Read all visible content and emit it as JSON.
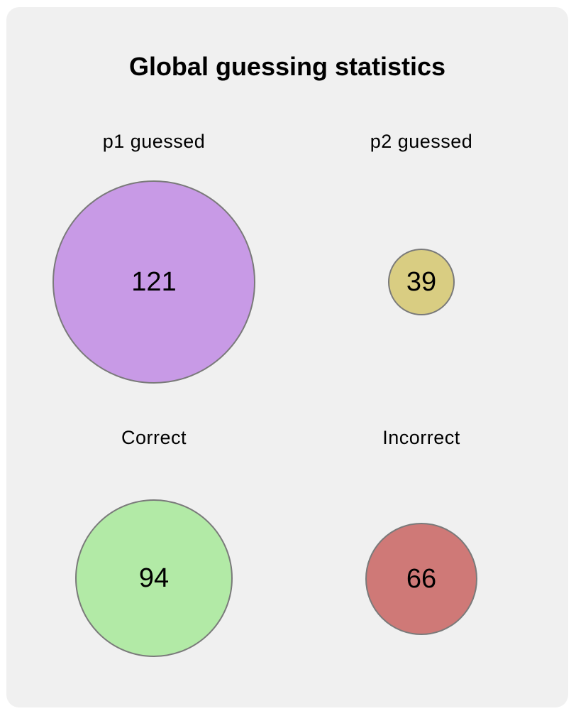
{
  "title": "Global guessing statistics",
  "stats": [
    {
      "label": "p1 guessed",
      "value": "121",
      "color": "#c89ae6"
    },
    {
      "label": "p2 guessed",
      "value": "39",
      "color": "#d9cd82"
    },
    {
      "label": "Correct",
      "value": "94",
      "color": "#b2eaa6"
    },
    {
      "label": "Incorrect",
      "value": "66",
      "color": "#cf7977"
    }
  ]
}
